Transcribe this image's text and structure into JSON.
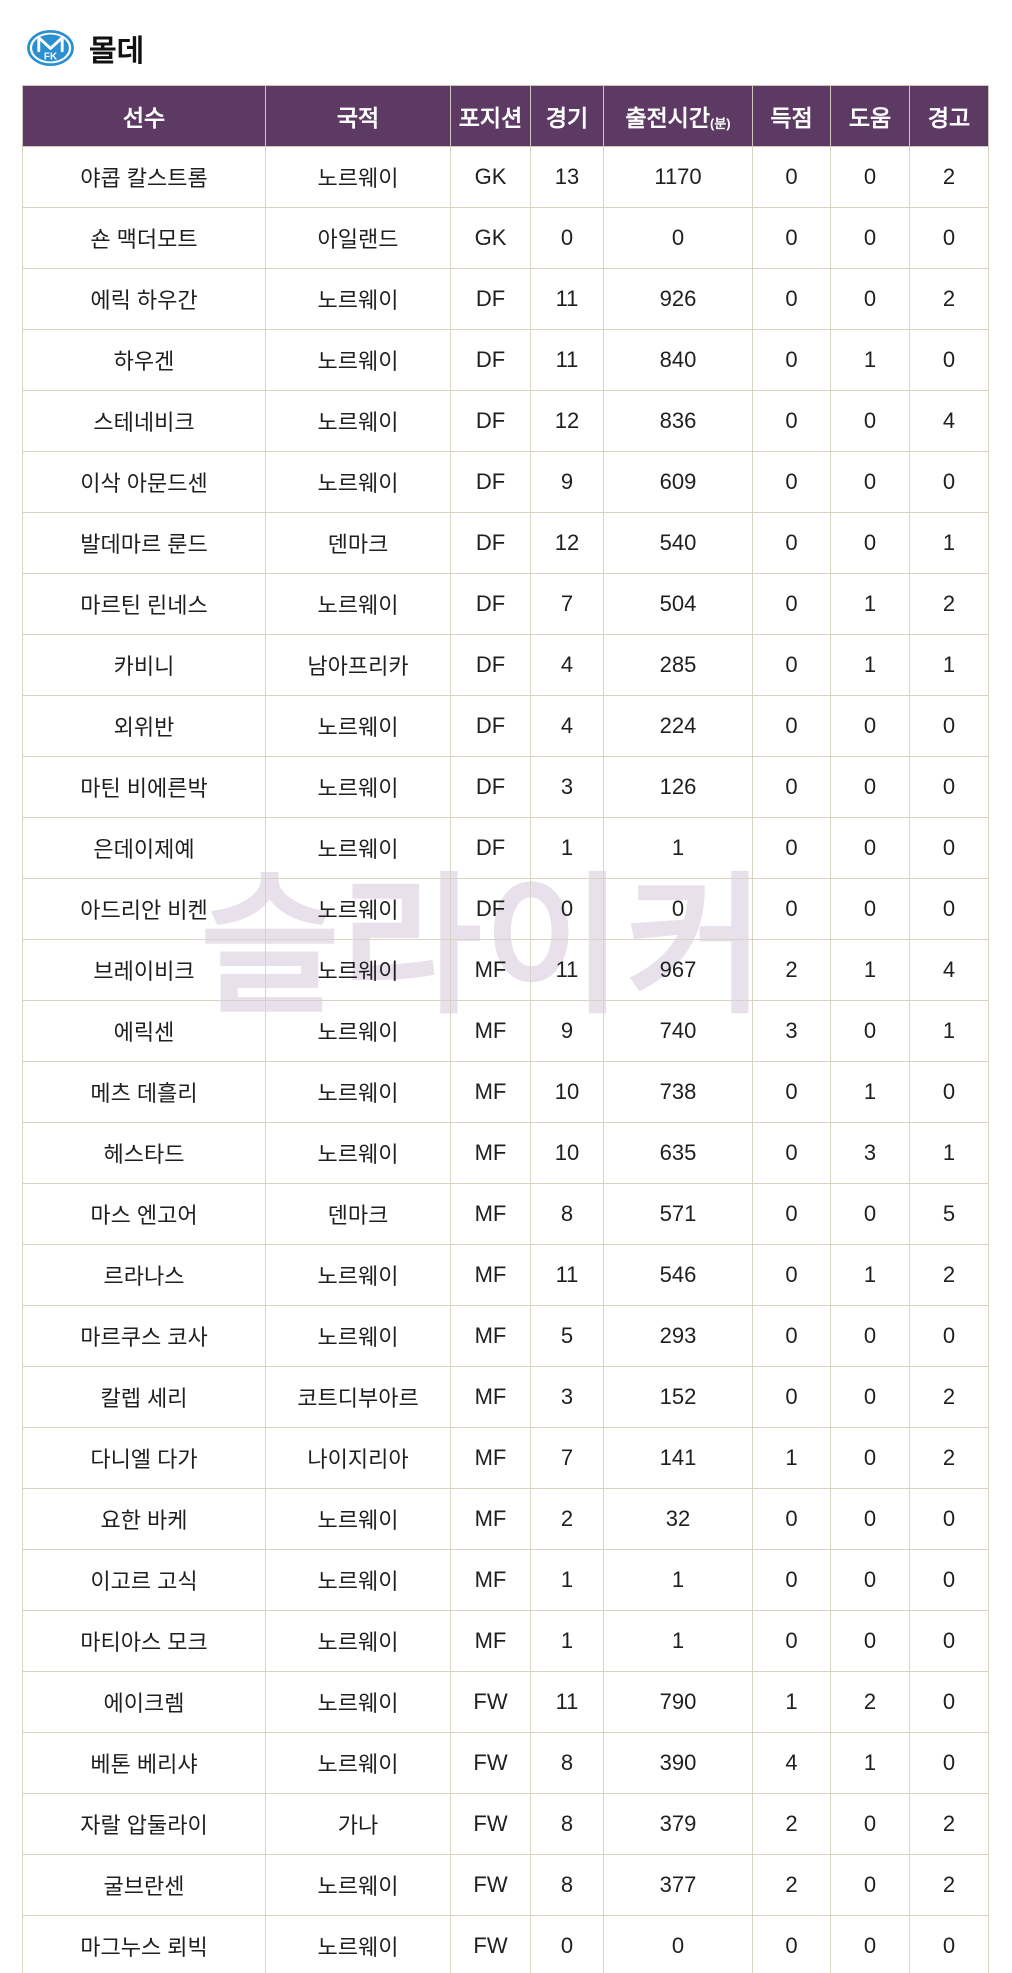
{
  "page": {
    "title": "몰데"
  },
  "watermark": {
    "text": "슬라이커"
  },
  "icons": {
    "team_logo": "molde-fk-crest"
  },
  "colors": {
    "header_bg": "#5d3a64",
    "header_text": "#ffffff",
    "border": "#d9d3c5",
    "body_text": "#1f1f1f",
    "watermark": "#e8e1ec",
    "logo_blue": "#2b8fd0"
  },
  "chart_data": {
    "type": "table",
    "title": "몰데",
    "columns": [
      {
        "key": "player",
        "label": "선수"
      },
      {
        "key": "nationality",
        "label": "국적"
      },
      {
        "key": "position",
        "label": "포지션"
      },
      {
        "key": "matches",
        "label": "경기"
      },
      {
        "key": "minutes",
        "label": "출전시간",
        "unit": "(분)"
      },
      {
        "key": "goals",
        "label": "득점"
      },
      {
        "key": "assists",
        "label": "도움"
      },
      {
        "key": "yellow-cards",
        "label": "경고"
      }
    ],
    "rows": [
      [
        "야콥 칼스트롬",
        "노르웨이",
        "GK",
        "13",
        "1170",
        "0",
        "0",
        "2"
      ],
      [
        "숀 맥더모트",
        "아일랜드",
        "GK",
        "0",
        "0",
        "0",
        "0",
        "0"
      ],
      [
        "에릭 하우간",
        "노르웨이",
        "DF",
        "11",
        "926",
        "0",
        "0",
        "2"
      ],
      [
        "하우겐",
        "노르웨이",
        "DF",
        "11",
        "840",
        "0",
        "1",
        "0"
      ],
      [
        "스테네비크",
        "노르웨이",
        "DF",
        "12",
        "836",
        "0",
        "0",
        "4"
      ],
      [
        "이삭 아문드센",
        "노르웨이",
        "DF",
        "9",
        "609",
        "0",
        "0",
        "0"
      ],
      [
        "발데마르 룬드",
        "덴마크",
        "DF",
        "12",
        "540",
        "0",
        "0",
        "1"
      ],
      [
        "마르틴 린네스",
        "노르웨이",
        "DF",
        "7",
        "504",
        "0",
        "1",
        "2"
      ],
      [
        "카비니",
        "남아프리카",
        "DF",
        "4",
        "285",
        "0",
        "1",
        "1"
      ],
      [
        "외위반",
        "노르웨이",
        "DF",
        "4",
        "224",
        "0",
        "0",
        "0"
      ],
      [
        "마틴 비에른박",
        "노르웨이",
        "DF",
        "3",
        "126",
        "0",
        "0",
        "0"
      ],
      [
        "은데이제예",
        "노르웨이",
        "DF",
        "1",
        "1",
        "0",
        "0",
        "0"
      ],
      [
        "아드리안 비켄",
        "노르웨이",
        "DF",
        "0",
        "0",
        "0",
        "0",
        "0"
      ],
      [
        "브레이비크",
        "노르웨이",
        "MF",
        "11",
        "967",
        "2",
        "1",
        "4"
      ],
      [
        "에릭센",
        "노르웨이",
        "MF",
        "9",
        "740",
        "3",
        "0",
        "1"
      ],
      [
        "메츠 데흘리",
        "노르웨이",
        "MF",
        "10",
        "738",
        "0",
        "1",
        "0"
      ],
      [
        "헤스타드",
        "노르웨이",
        "MF",
        "10",
        "635",
        "0",
        "3",
        "1"
      ],
      [
        "마스 엔고어",
        "덴마크",
        "MF",
        "8",
        "571",
        "0",
        "0",
        "5"
      ],
      [
        "르라나스",
        "노르웨이",
        "MF",
        "11",
        "546",
        "0",
        "1",
        "2"
      ],
      [
        "마르쿠스 코사",
        "노르웨이",
        "MF",
        "5",
        "293",
        "0",
        "0",
        "0"
      ],
      [
        "칼렙 세리",
        "코트디부아르",
        "MF",
        "3",
        "152",
        "0",
        "0",
        "2"
      ],
      [
        "다니엘 다가",
        "나이지리아",
        "MF",
        "7",
        "141",
        "1",
        "0",
        "2"
      ],
      [
        "요한 바케",
        "노르웨이",
        "MF",
        "2",
        "32",
        "0",
        "0",
        "0"
      ],
      [
        "이고르 고식",
        "노르웨이",
        "MF",
        "1",
        "1",
        "0",
        "0",
        "0"
      ],
      [
        "마티아스 모크",
        "노르웨이",
        "MF",
        "1",
        "1",
        "0",
        "0",
        "0"
      ],
      [
        "에이크렘",
        "노르웨이",
        "FW",
        "11",
        "790",
        "1",
        "2",
        "0"
      ],
      [
        "베톤 베리샤",
        "노르웨이",
        "FW",
        "8",
        "390",
        "4",
        "1",
        "0"
      ],
      [
        "자랄 압둘라이",
        "가나",
        "FW",
        "8",
        "379",
        "2",
        "0",
        "2"
      ],
      [
        "굴브란센",
        "노르웨이",
        "FW",
        "8",
        "377",
        "2",
        "0",
        "2"
      ],
      [
        "마그누스 뢰빅",
        "노르웨이",
        "FW",
        "0",
        "0",
        "0",
        "0",
        "0"
      ]
    ]
  }
}
